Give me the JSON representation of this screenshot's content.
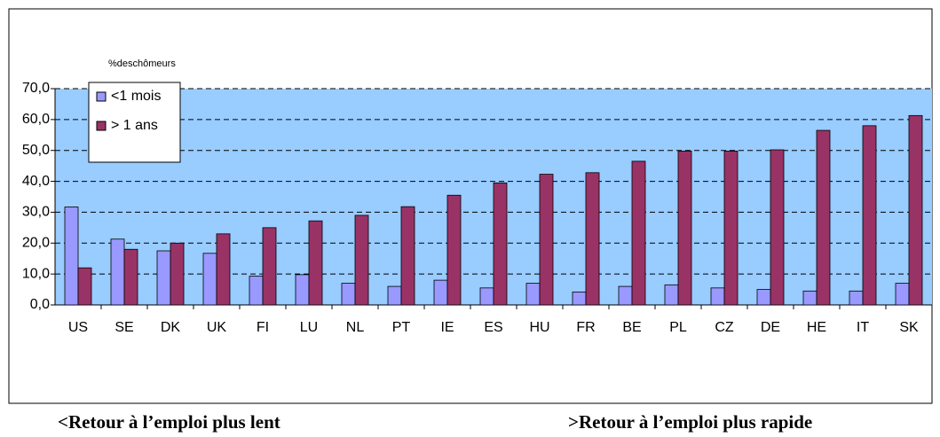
{
  "chart_data": {
    "type": "bar",
    "y_label": "%deschômeurs",
    "categories": [
      "US",
      "SE",
      "DK",
      "UK",
      "FI",
      "LU",
      "NL",
      "PT",
      "IE",
      "ES",
      "HU",
      "FR",
      "BE",
      "PL",
      "CZ",
      "DE",
      "HE",
      "IT",
      "SK"
    ],
    "series": [
      {
        "name": "<1 mois",
        "color": "#9999ff",
        "values": [
          31.7,
          21.3,
          17.5,
          16.7,
          9.3,
          9.8,
          7.0,
          6.0,
          8.0,
          5.5,
          7.0,
          4.2,
          6.0,
          6.5,
          5.5,
          5.0,
          4.5,
          4.5,
          7.0
        ]
      },
      {
        "name": "> 1 ans",
        "color": "#993366",
        "values": [
          12.0,
          18.0,
          20.0,
          23.0,
          25.0,
          27.2,
          29.0,
          31.8,
          35.5,
          39.5,
          42.3,
          42.8,
          46.5,
          49.8,
          49.8,
          50.2,
          56.5,
          58.0,
          61.3
        ]
      }
    ],
    "ylim": [
      0,
      70
    ],
    "yticks": [
      {
        "value": 0,
        "label": "0,0"
      },
      {
        "value": 10,
        "label": "10,0"
      },
      {
        "value": 20,
        "label": "20,0"
      },
      {
        "value": 30,
        "label": "30,0"
      },
      {
        "value": 40,
        "label": "40,0"
      },
      {
        "value": 50,
        "label": "50,0"
      },
      {
        "value": 60,
        "label": "60,0"
      },
      {
        "value": 70,
        "label": "70,0"
      }
    ],
    "grid": true,
    "plot_background": "#99ccff",
    "legend_position": "upper left",
    "annotations": [
      "<Retour à l’emploi plus lent",
      ">Retour à l’emploi plus rapide"
    ]
  }
}
